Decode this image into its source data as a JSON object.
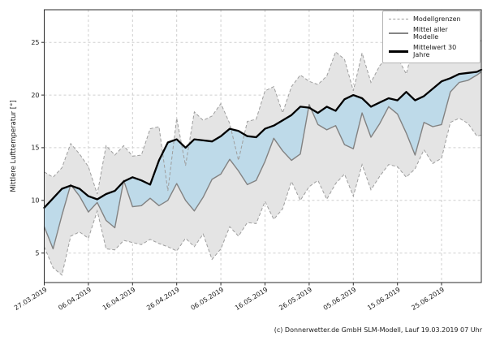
{
  "caption": "(c) Donnerwetter.de GmbH SLM-Modell, Lauf 19.03.2019 07 Uhr",
  "chart_data": {
    "type": "line",
    "title": "",
    "xlabel": "",
    "ylabel": "Mittlere Lufttemperatur [°]",
    "grid": true,
    "xlim": [
      0,
      99
    ],
    "ylim": [
      2.2,
      28.1
    ],
    "y_ticks": [
      5,
      10,
      15,
      20,
      25
    ],
    "x_tick_days": [
      0,
      10,
      20,
      30,
      40,
      50,
      60,
      70,
      80,
      90
    ],
    "x_tick_labels": [
      "27.03.2019",
      "06.04.2019",
      "16.04.2019",
      "26.04.2019",
      "06.05.2019",
      "16.05.2019",
      "26.05.2019",
      "05.06.2019",
      "15.06.2019",
      "25.06.2019"
    ],
    "legend": {
      "position": "top-right",
      "entries": [
        {
          "label": "Modellgrenzen",
          "style": "dashed-gray"
        },
        {
          "label": "Mittel aller Modelle",
          "style": "solid-gray"
        },
        {
          "label": "Mittelwert 30 Jahre",
          "style": "bold-black"
        }
      ]
    },
    "days_from_start": [
      0,
      2,
      4,
      6,
      8,
      10,
      12,
      14,
      16,
      18,
      20,
      22,
      24,
      26,
      28,
      30,
      32,
      34,
      36,
      38,
      40,
      42,
      44,
      46,
      48,
      50,
      52,
      54,
      56,
      58,
      60,
      62,
      64,
      66,
      68,
      70,
      72,
      74,
      76,
      78,
      80,
      82,
      84,
      86,
      88,
      90,
      92,
      94,
      96,
      98,
      99
    ],
    "series": [
      {
        "name": "model_upper_bound",
        "values": [
          12.7,
          12.2,
          13.1,
          15.4,
          14.4,
          13.2,
          10.6,
          15.2,
          14.3,
          15.2,
          14.2,
          14.3,
          16.8,
          17.0,
          10.9,
          17.8,
          13.3,
          18.4,
          17.6,
          18.0,
          19.2,
          17.3,
          13.8,
          17.5,
          17.7,
          20.4,
          20.8,
          18.3,
          20.8,
          21.9,
          21.3,
          21.0,
          21.8,
          24.1,
          23.4,
          20.4,
          24.0,
          21.2,
          22.8,
          23.7,
          23.6,
          22.0,
          25.2,
          23.2,
          24.0,
          24.6,
          23.6,
          23.9,
          23.5,
          24.4,
          25.3
        ]
      },
      {
        "name": "model_lower_bound",
        "values": [
          5.6,
          3.6,
          2.9,
          6.6,
          7.0,
          6.4,
          9.0,
          5.4,
          5.3,
          6.2,
          6.0,
          5.8,
          6.3,
          5.9,
          5.6,
          5.2,
          6.4,
          5.6,
          6.8,
          4.4,
          5.4,
          7.5,
          6.6,
          7.9,
          7.8,
          9.9,
          8.2,
          9.2,
          11.8,
          10.0,
          11.3,
          11.9,
          10.1,
          11.6,
          12.5,
          10.4,
          13.4,
          11.0,
          12.3,
          13.4,
          13.2,
          12.2,
          13.0,
          14.8,
          13.5,
          14.0,
          17.4,
          17.8,
          17.3,
          16.1,
          16.2
        ]
      },
      {
        "name": "model_mean",
        "values": [
          7.5,
          5.4,
          8.6,
          11.5,
          10.4,
          8.9,
          9.8,
          8.1,
          7.4,
          11.9,
          9.4,
          9.5,
          10.2,
          9.5,
          10.0,
          11.6,
          10.0,
          9.0,
          10.3,
          12.0,
          12.5,
          13.9,
          12.8,
          11.5,
          11.9,
          13.7,
          15.9,
          14.7,
          13.8,
          14.4,
          19.1,
          17.2,
          16.7,
          17.1,
          15.3,
          14.9,
          18.3,
          16.0,
          17.3,
          18.9,
          18.2,
          16.4,
          14.3,
          17.4,
          17.0,
          17.2,
          20.3,
          21.2,
          21.4,
          21.9,
          22.2
        ]
      },
      {
        "name": "mean_30_years",
        "values": [
          9.3,
          10.2,
          11.1,
          11.4,
          11.1,
          10.4,
          10.1,
          10.6,
          10.9,
          11.8,
          12.2,
          11.9,
          11.5,
          13.8,
          15.5,
          15.8,
          15.0,
          15.8,
          15.7,
          15.6,
          16.1,
          16.8,
          16.6,
          16.1,
          16.0,
          16.8,
          17.1,
          17.6,
          18.1,
          18.9,
          18.8,
          18.3,
          18.9,
          18.5,
          19.6,
          20.0,
          19.7,
          18.9,
          19.3,
          19.7,
          19.5,
          20.3,
          19.5,
          19.9,
          20.6,
          21.3,
          21.6,
          22.0,
          22.1,
          22.2,
          22.4
        ]
      }
    ],
    "colors": {
      "grid": "#cfcfcf",
      "band_fill": "#e4e4e4",
      "band_edge": "#9e9e9e",
      "fill_mean_below_30y": "#b9d8e9",
      "fill_mean_above_30y": "#f1b6aa",
      "model_mean_line": "#828282",
      "mean_30y_line": "#000000",
      "frame": "#2b2b2b",
      "tick_label": "#1a1a1a"
    }
  }
}
